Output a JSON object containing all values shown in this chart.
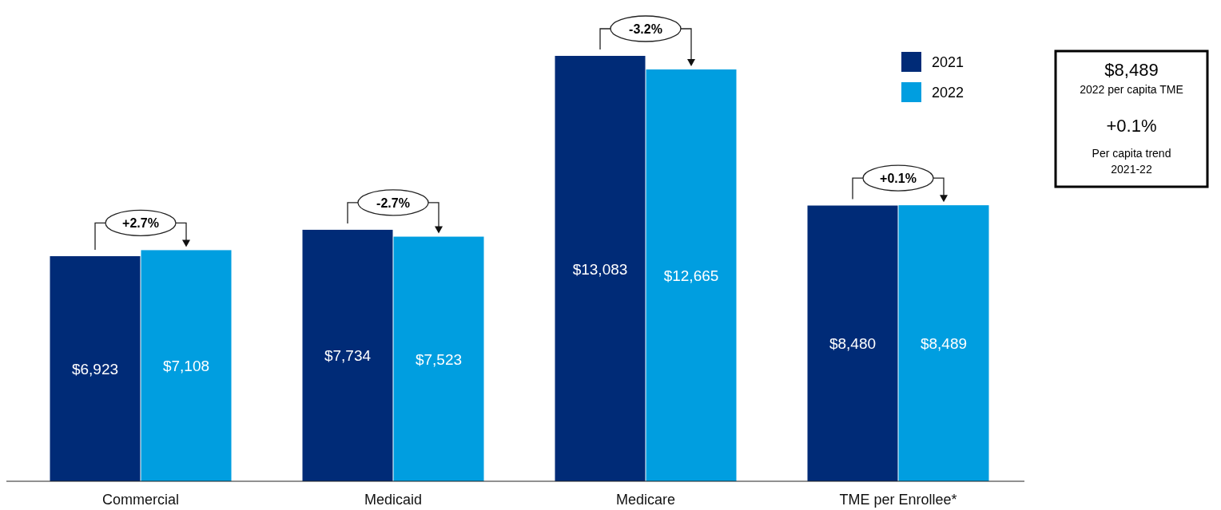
{
  "chart_data": {
    "type": "bar",
    "categories": [
      "Commercial",
      "Medicaid",
      "Medicare",
      "TME per Enrollee*"
    ],
    "series": [
      {
        "name": "2021",
        "color": "#002b77",
        "values": [
          6923,
          7734,
          13083,
          8480
        ],
        "value_labels": [
          "$6,923",
          "$7,734",
          "$13,083",
          "$8,480"
        ]
      },
      {
        "name": "2022",
        "color": "#009ee0",
        "values": [
          7108,
          7523,
          12665,
          8489
        ],
        "value_labels": [
          "$7,108",
          "$7,523",
          "$12,665",
          "$8,489"
        ]
      }
    ],
    "legend": "top right",
    "annotations": [
      "+2.7%",
      "-2.7%",
      "-3.2%",
      "+0.1%",
      "$8,489",
      "2022 per capita TME",
      "+0.1%",
      "Per capita trend",
      "2021-22"
    ]
  }
}
